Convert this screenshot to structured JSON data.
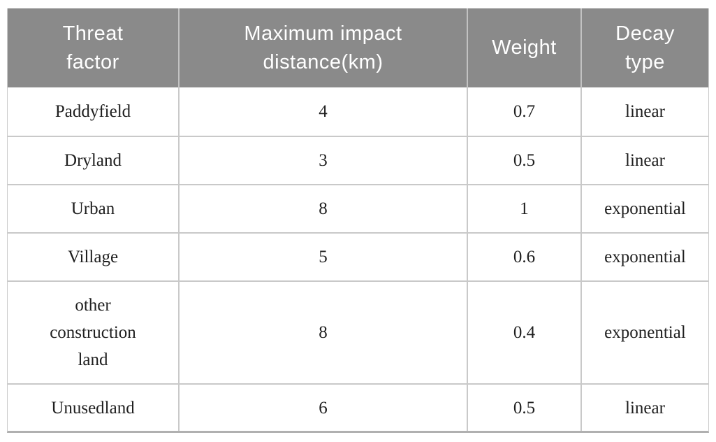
{
  "table": {
    "columns": [
      "Threat\nfactor",
      "Maximum impact\ndistance(km)",
      "Weight",
      "Decay\ntype"
    ],
    "rows": [
      {
        "threat_factor": "Paddyfield",
        "max_impact_distance_km": "4",
        "weight": "0.7",
        "decay_type": "linear"
      },
      {
        "threat_factor": "Dryland",
        "max_impact_distance_km": "3",
        "weight": "0.5",
        "decay_type": "linear"
      },
      {
        "threat_factor": "Urban",
        "max_impact_distance_km": "8",
        "weight": "1",
        "decay_type": "exponential"
      },
      {
        "threat_factor": "Village",
        "max_impact_distance_km": "5",
        "weight": "0.6",
        "decay_type": "exponential"
      },
      {
        "threat_factor": "other\nconstruction\nland",
        "max_impact_distance_km": "8",
        "weight": "0.4",
        "decay_type": "exponential"
      },
      {
        "threat_factor": "Unusedland",
        "max_impact_distance_km": "6",
        "weight": "0.5",
        "decay_type": "linear"
      }
    ]
  },
  "colors": {
    "header_bg": "#8a8a8a",
    "header_text": "#ffffff",
    "body_text": "#1f1f1f",
    "grid_line": "#c9c9c9",
    "header_separator": "#c2c2c2",
    "bottom_border": "#b0b0b0",
    "background": "#ffffff"
  }
}
